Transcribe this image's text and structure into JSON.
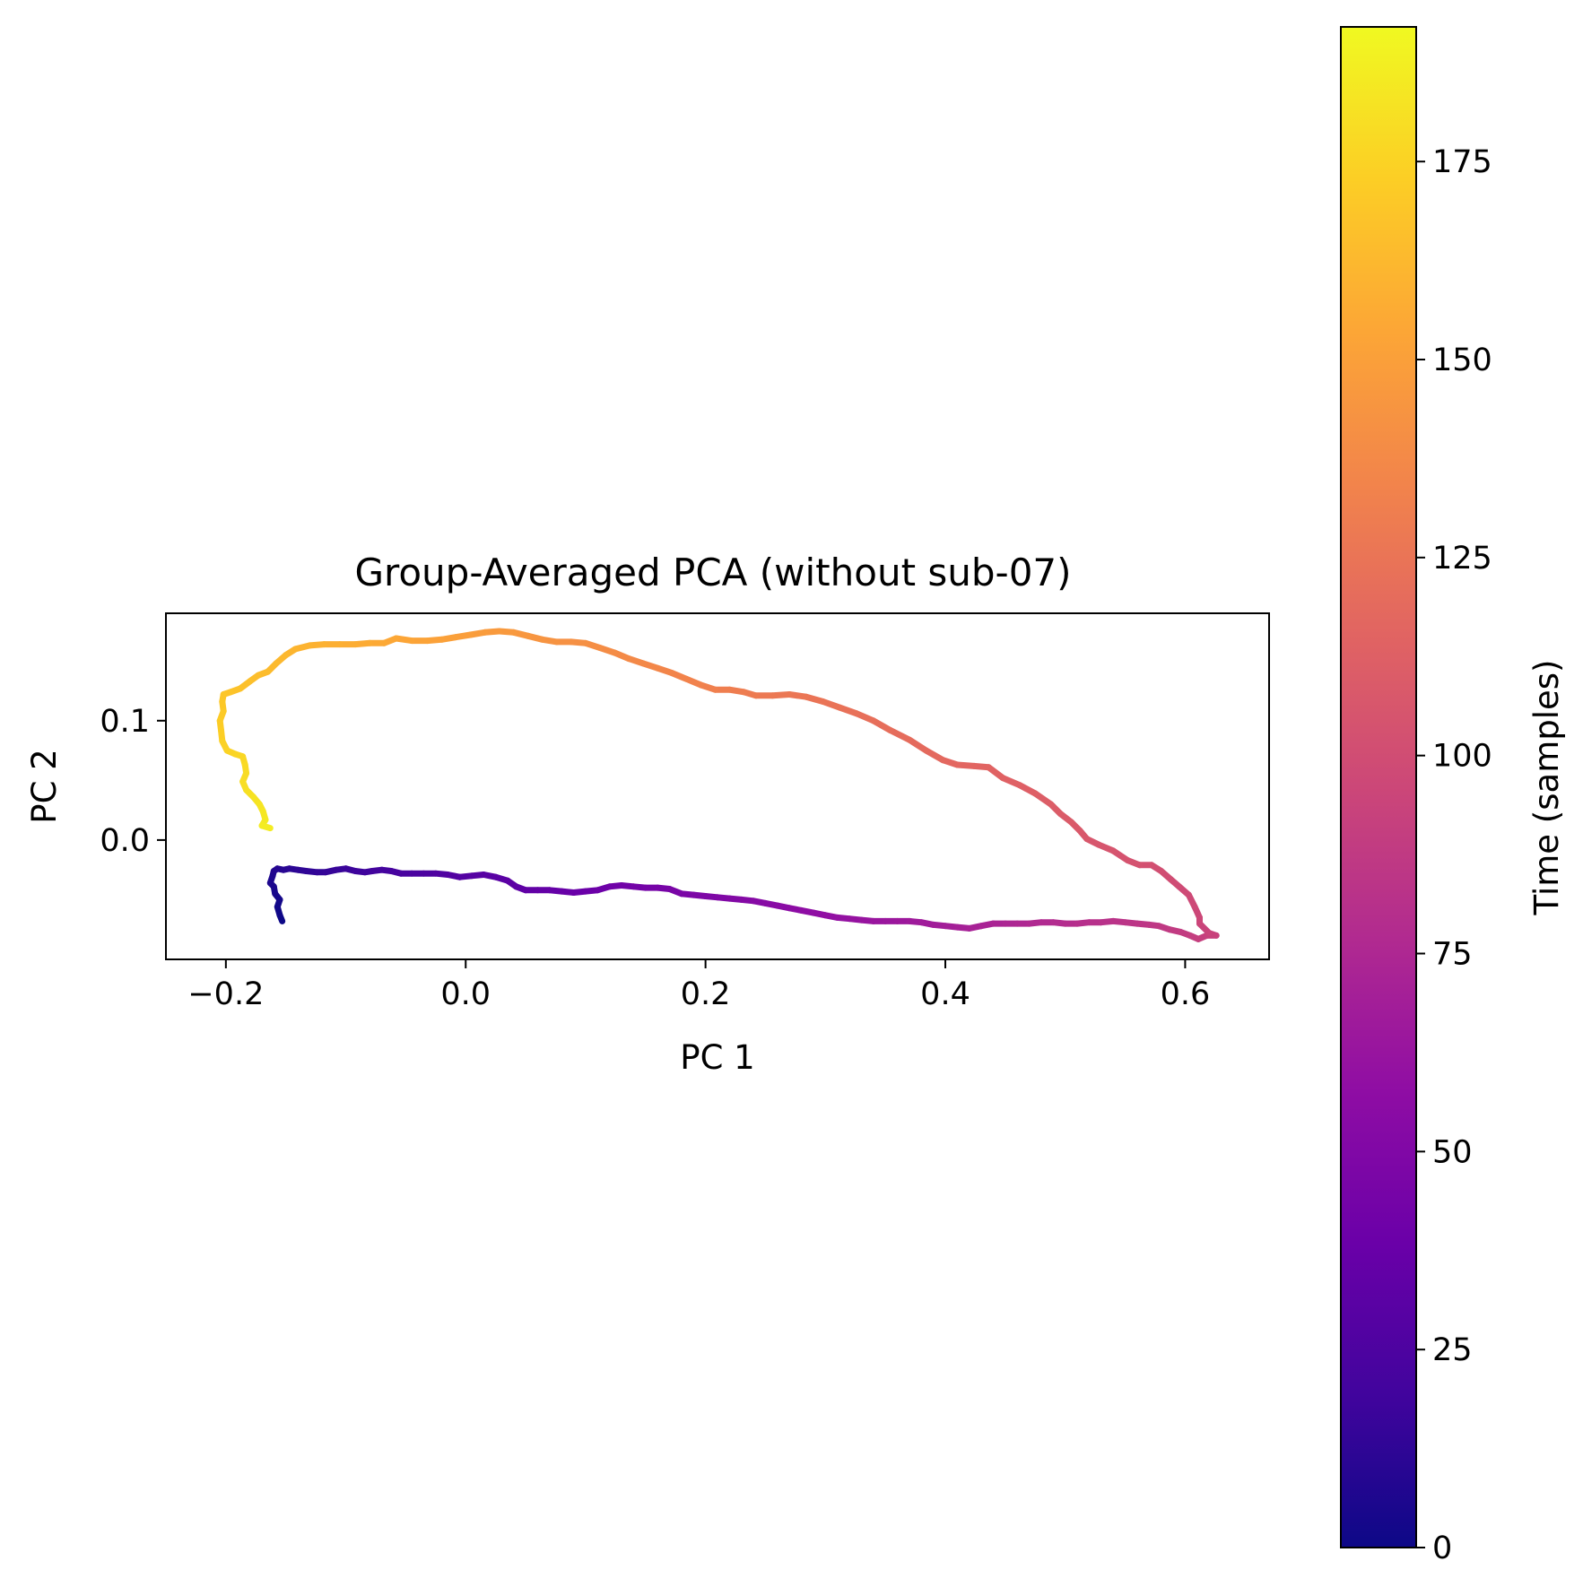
{
  "chart_data": {
    "type": "line",
    "title": "Group-Averaged PCA (without sub-07)",
    "xlabel": "PC 1",
    "ylabel": "PC 2",
    "xlim": [
      -0.25,
      0.67
    ],
    "ylim": [
      -0.1,
      0.19
    ],
    "xticks": [
      -0.2,
      0.0,
      0.2,
      0.4,
      0.6
    ],
    "xtick_labels": [
      "−0.2",
      "0.0",
      "0.2",
      "0.4",
      "0.6"
    ],
    "yticks": [
      0.0,
      0.1
    ],
    "ytick_labels": [
      "0.0",
      "0.1"
    ],
    "grid": false,
    "colormap": "plasma",
    "colorbar": {
      "label": "Time (samples)",
      "min": 0,
      "max": 192,
      "ticks": [
        0,
        25,
        50,
        75,
        100,
        125,
        150,
        175
      ],
      "tick_labels": [
        "0",
        "25",
        "50",
        "75",
        "100",
        "125",
        "150",
        "175"
      ]
    },
    "series": [
      {
        "color_by": "time",
        "points": [
          [
            -0.153,
            -0.068
          ],
          [
            -0.155,
            -0.063
          ],
          [
            -0.157,
            -0.056
          ],
          [
            -0.155,
            -0.05
          ],
          [
            -0.159,
            -0.045
          ],
          [
            -0.16,
            -0.039
          ],
          [
            -0.163,
            -0.036
          ],
          [
            -0.161,
            -0.03
          ],
          [
            -0.16,
            -0.026
          ],
          [
            -0.157,
            -0.024
          ],
          [
            -0.152,
            -0.025
          ],
          [
            -0.147,
            -0.024
          ],
          [
            -0.14,
            -0.025
          ],
          [
            -0.133,
            -0.026
          ],
          [
            -0.124,
            -0.027
          ],
          [
            -0.117,
            -0.027
          ],
          [
            -0.108,
            -0.025
          ],
          [
            -0.1,
            -0.024
          ],
          [
            -0.092,
            -0.026
          ],
          [
            -0.084,
            -0.027
          ],
          [
            -0.078,
            -0.026
          ],
          [
            -0.07,
            -0.025
          ],
          [
            -0.062,
            -0.026
          ],
          [
            -0.054,
            -0.028
          ],
          [
            -0.045,
            -0.028
          ],
          [
            -0.035,
            -0.028
          ],
          [
            -0.025,
            -0.028
          ],
          [
            -0.015,
            -0.029
          ],
          [
            -0.005,
            -0.031
          ],
          [
            0.005,
            -0.03
          ],
          [
            0.015,
            -0.029
          ],
          [
            0.025,
            -0.031
          ],
          [
            0.035,
            -0.034
          ],
          [
            0.042,
            -0.039
          ],
          [
            0.05,
            -0.042
          ],
          [
            0.06,
            -0.042
          ],
          [
            0.07,
            -0.042
          ],
          [
            0.08,
            -0.043
          ],
          [
            0.09,
            -0.044
          ],
          [
            0.1,
            -0.043
          ],
          [
            0.11,
            -0.042
          ],
          [
            0.12,
            -0.039
          ],
          [
            0.13,
            -0.038
          ],
          [
            0.14,
            -0.039
          ],
          [
            0.15,
            -0.04
          ],
          [
            0.16,
            -0.04
          ],
          [
            0.17,
            -0.041
          ],
          [
            0.18,
            -0.045
          ],
          [
            0.19,
            -0.046
          ],
          [
            0.2,
            -0.047
          ],
          [
            0.21,
            -0.048
          ],
          [
            0.22,
            -0.049
          ],
          [
            0.23,
            -0.05
          ],
          [
            0.24,
            -0.051
          ],
          [
            0.25,
            -0.053
          ],
          [
            0.26,
            -0.055
          ],
          [
            0.27,
            -0.057
          ],
          [
            0.28,
            -0.059
          ],
          [
            0.29,
            -0.061
          ],
          [
            0.3,
            -0.063
          ],
          [
            0.31,
            -0.065
          ],
          [
            0.32,
            -0.066
          ],
          [
            0.33,
            -0.067
          ],
          [
            0.34,
            -0.068
          ],
          [
            0.35,
            -0.068
          ],
          [
            0.36,
            -0.068
          ],
          [
            0.37,
            -0.068
          ],
          [
            0.38,
            -0.069
          ],
          [
            0.39,
            -0.071
          ],
          [
            0.4,
            -0.072
          ],
          [
            0.41,
            -0.073
          ],
          [
            0.42,
            -0.074
          ],
          [
            0.43,
            -0.072
          ],
          [
            0.44,
            -0.07
          ],
          [
            0.45,
            -0.07
          ],
          [
            0.46,
            -0.07
          ],
          [
            0.47,
            -0.07
          ],
          [
            0.48,
            -0.069
          ],
          [
            0.49,
            -0.069
          ],
          [
            0.5,
            -0.07
          ],
          [
            0.51,
            -0.07
          ],
          [
            0.52,
            -0.069
          ],
          [
            0.53,
            -0.069
          ],
          [
            0.54,
            -0.068
          ],
          [
            0.55,
            -0.069
          ],
          [
            0.56,
            -0.07
          ],
          [
            0.57,
            -0.071
          ],
          [
            0.578,
            -0.072
          ],
          [
            0.587,
            -0.075
          ],
          [
            0.596,
            -0.077
          ],
          [
            0.604,
            -0.08
          ],
          [
            0.611,
            -0.083
          ],
          [
            0.618,
            -0.08
          ],
          [
            0.626,
            -0.08
          ],
          [
            0.62,
            -0.078
          ],
          [
            0.612,
            -0.07
          ],
          [
            0.612,
            -0.065
          ],
          [
            0.608,
            -0.056
          ],
          [
            0.603,
            -0.046
          ],
          [
            0.595,
            -0.039
          ],
          [
            0.588,
            -0.033
          ],
          [
            0.58,
            -0.026
          ],
          [
            0.572,
            -0.021
          ],
          [
            0.562,
            -0.021
          ],
          [
            0.552,
            -0.017
          ],
          [
            0.54,
            -0.009
          ],
          [
            0.528,
            -0.004
          ],
          [
            0.518,
            0.001
          ],
          [
            0.512,
            0.008
          ],
          [
            0.505,
            0.015
          ],
          [
            0.496,
            0.022
          ],
          [
            0.488,
            0.03
          ],
          [
            0.475,
            0.039
          ],
          [
            0.462,
            0.046
          ],
          [
            0.448,
            0.052
          ],
          [
            0.436,
            0.061
          ],
          [
            0.424,
            0.062
          ],
          [
            0.41,
            0.063
          ],
          [
            0.398,
            0.067
          ],
          [
            0.384,
            0.075
          ],
          [
            0.37,
            0.084
          ],
          [
            0.354,
            0.092
          ],
          [
            0.34,
            0.1
          ],
          [
            0.326,
            0.106
          ],
          [
            0.312,
            0.111
          ],
          [
            0.298,
            0.116
          ],
          [
            0.284,
            0.12
          ],
          [
            0.27,
            0.122
          ],
          [
            0.256,
            0.121
          ],
          [
            0.242,
            0.121
          ],
          [
            0.232,
            0.124
          ],
          [
            0.22,
            0.126
          ],
          [
            0.208,
            0.126
          ],
          [
            0.196,
            0.13
          ],
          [
            0.184,
            0.135
          ],
          [
            0.172,
            0.14
          ],
          [
            0.16,
            0.144
          ],
          [
            0.148,
            0.148
          ],
          [
            0.136,
            0.152
          ],
          [
            0.124,
            0.157
          ],
          [
            0.112,
            0.161
          ],
          [
            0.1,
            0.165
          ],
          [
            0.088,
            0.166
          ],
          [
            0.076,
            0.166
          ],
          [
            0.064,
            0.168
          ],
          [
            0.052,
            0.171
          ],
          [
            0.04,
            0.174
          ],
          [
            0.028,
            0.175
          ],
          [
            0.016,
            0.174
          ],
          [
            0.004,
            0.172
          ],
          [
            -0.008,
            0.17
          ],
          [
            -0.02,
            0.168
          ],
          [
            -0.032,
            0.167
          ],
          [
            -0.045,
            0.167
          ],
          [
            -0.058,
            0.169
          ],
          [
            -0.068,
            0.165
          ],
          [
            -0.08,
            0.165
          ],
          [
            -0.092,
            0.164
          ],
          [
            -0.105,
            0.164
          ],
          [
            -0.118,
            0.164
          ],
          [
            -0.13,
            0.163
          ],
          [
            -0.142,
            0.16
          ],
          [
            -0.15,
            0.155
          ],
          [
            -0.158,
            0.148
          ],
          [
            -0.165,
            0.141
          ],
          [
            -0.173,
            0.138
          ],
          [
            -0.18,
            0.133
          ],
          [
            -0.188,
            0.127
          ],
          [
            -0.196,
            0.124
          ],
          [
            -0.202,
            0.122
          ],
          [
            -0.203,
            0.116
          ],
          [
            -0.202,
            0.108
          ],
          [
            -0.205,
            0.1
          ],
          [
            -0.204,
            0.092
          ],
          [
            -0.203,
            0.083
          ],
          [
            -0.199,
            0.075
          ],
          [
            -0.192,
            0.072
          ],
          [
            -0.186,
            0.07
          ],
          [
            -0.184,
            0.063
          ],
          [
            -0.183,
            0.056
          ],
          [
            -0.186,
            0.049
          ],
          [
            -0.183,
            0.042
          ],
          [
            -0.177,
            0.036
          ],
          [
            -0.172,
            0.03
          ],
          [
            -0.169,
            0.024
          ],
          [
            -0.167,
            0.017
          ],
          [
            -0.17,
            0.012
          ],
          [
            -0.163,
            0.01
          ]
        ]
      }
    ]
  }
}
